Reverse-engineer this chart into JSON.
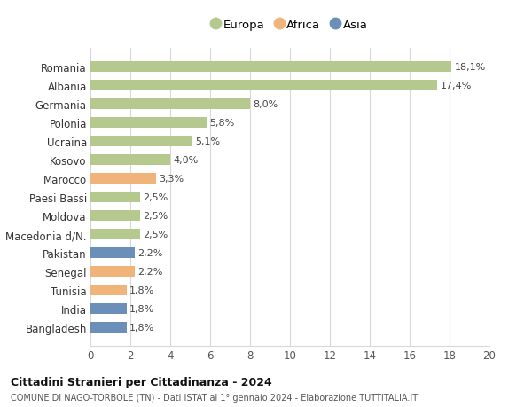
{
  "categories": [
    "Romania",
    "Albania",
    "Germania",
    "Polonia",
    "Ucraina",
    "Kosovo",
    "Marocco",
    "Paesi Bassi",
    "Moldova",
    "Macedonia d/N.",
    "Pakistan",
    "Senegal",
    "Tunisia",
    "India",
    "Bangladesh"
  ],
  "values": [
    18.1,
    17.4,
    8.0,
    5.8,
    5.1,
    4.0,
    3.3,
    2.5,
    2.5,
    2.5,
    2.2,
    2.2,
    1.8,
    1.8,
    1.8
  ],
  "labels": [
    "18,1%",
    "17,4%",
    "8,0%",
    "5,8%",
    "5,1%",
    "4,0%",
    "3,3%",
    "2,5%",
    "2,5%",
    "2,5%",
    "2,2%",
    "2,2%",
    "1,8%",
    "1,8%",
    "1,8%"
  ],
  "continents": [
    "Europa",
    "Europa",
    "Europa",
    "Europa",
    "Europa",
    "Europa",
    "Africa",
    "Europa",
    "Europa",
    "Europa",
    "Asia",
    "Africa",
    "Africa",
    "Asia",
    "Asia"
  ],
  "colors": {
    "Europa": "#b5c98e",
    "Africa": "#f0b47a",
    "Asia": "#6b8fb8"
  },
  "legend_order": [
    "Europa",
    "Africa",
    "Asia"
  ],
  "legend_colors": [
    "#b5c98e",
    "#f0b47a",
    "#6b8fb8"
  ],
  "xlim": [
    0,
    20
  ],
  "xticks": [
    0,
    2,
    4,
    6,
    8,
    10,
    12,
    14,
    16,
    18,
    20
  ],
  "title": "Cittadini Stranieri per Cittadinanza - 2024",
  "subtitle": "COMUNE DI NAGO-TORBOLE (TN) - Dati ISTAT al 1° gennaio 2024 - Elaborazione TUTTITALIA.IT",
  "background_color": "#ffffff",
  "grid_color": "#d8d8d8",
  "bar_height": 0.55
}
